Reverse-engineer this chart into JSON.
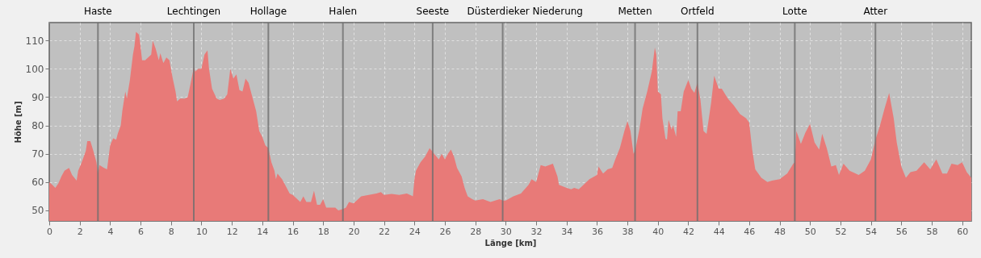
{
  "chart_data": {
    "type": "area",
    "xlabel": "Länge [km]",
    "ylabel": "Höhe [m]",
    "xlim": [
      0,
      60.6
    ],
    "ylim": [
      46.3,
      116.3
    ],
    "xticks": [
      0,
      2,
      4,
      6,
      8,
      10,
      12,
      14,
      16,
      18,
      20,
      22,
      24,
      26,
      28,
      30,
      32,
      34,
      36,
      38,
      40,
      42,
      44,
      46,
      48,
      50,
      52,
      54,
      56,
      58,
      60
    ],
    "yticks": [
      50,
      60,
      70,
      80,
      90,
      100,
      110
    ],
    "grid": true,
    "series": [
      {
        "color": "#e87a78",
        "x": [
          0,
          0.2,
          0.4,
          0.6,
          0.8,
          1.0,
          1.3,
          1.5,
          1.8,
          1.9,
          2.1,
          2.4,
          2.5,
          2.7,
          2.9,
          3.1,
          3.2,
          3.3,
          3.6,
          3.8,
          4.0,
          4.2,
          4.4,
          4.5,
          4.7,
          4.8,
          5.0,
          5.1,
          5.3,
          5.5,
          5.6,
          5.7,
          5.9,
          6.0,
          6.1,
          6.3,
          6.6,
          6.7,
          6.8,
          7.0,
          7.2,
          7.3,
          7.5,
          7.7,
          7.9,
          8.1,
          8.3,
          8.4,
          8.6,
          8.9,
          9.1,
          9.3,
          9.5,
          9.6,
          9.8,
          10.0,
          10.2,
          10.4,
          10.5,
          10.7,
          11.0,
          11.2,
          11.5,
          11.7,
          11.9,
          12.1,
          12.3,
          12.5,
          12.7,
          12.9,
          13.1,
          13.3,
          13.6,
          13.8,
          14.0,
          14.2,
          14.4,
          14.6,
          14.8,
          14.9,
          15.0,
          15.3,
          15.5,
          15.8,
          16.0,
          16.3,
          16.5,
          16.7,
          16.9,
          17.2,
          17.4,
          17.6,
          17.8,
          18.0,
          18.2,
          18.5,
          18.8,
          19.0,
          19.3,
          19.5,
          19.7,
          20.0,
          20.3,
          20.5,
          21.0,
          21.5,
          21.8,
          22.0,
          22.5,
          23.0,
          23.5,
          23.9,
          24.0,
          24.1,
          24.4,
          24.7,
          25.0,
          25.3,
          25.6,
          25.8,
          26.0,
          26.2,
          26.4,
          26.6,
          26.8,
          27.1,
          27.3,
          27.5,
          27.8,
          28.0,
          28.5,
          29.0,
          29.3,
          29.6,
          29.8,
          30.0,
          30.5,
          31.0,
          31.5,
          31.7,
          32.0,
          32.3,
          32.6,
          33.1,
          33.4,
          33.5,
          34.0,
          34.3,
          34.5,
          34.8,
          35.0,
          35.5,
          36.0,
          36.1,
          36.4,
          36.7,
          37.0,
          37.2,
          37.5,
          37.8,
          38.0,
          38.2,
          38.4,
          38.5,
          38.8,
          39.0,
          39.3,
          39.6,
          39.8,
          39.9,
          40.0,
          40.2,
          40.3,
          40.5,
          40.6,
          40.7,
          40.9,
          41.0,
          41.2,
          41.3,
          41.5,
          41.7,
          42.0,
          42.2,
          42.4,
          42.6,
          42.8,
          43.0,
          43.2,
          43.5,
          43.7,
          44.0,
          44.2,
          44.6,
          45.0,
          45.4,
          45.8,
          46.0,
          46.2,
          46.4,
          46.8,
          47.2,
          47.5,
          48.0,
          48.5,
          48.9,
          49.0,
          49.1,
          49.4,
          49.7,
          50.0,
          50.3,
          50.6,
          50.8,
          51.1,
          51.4,
          51.7,
          51.9,
          52.2,
          52.6,
          53.2,
          53.6,
          54.0,
          54.3,
          54.6,
          54.9,
          55.2,
          55.5,
          55.7,
          56.0,
          56.3,
          56.6,
          57.0,
          57.5,
          57.9,
          58.3,
          58.7,
          59.0,
          59.3,
          59.7,
          60.0,
          60.3,
          60.6
        ],
        "values": [
          60,
          59,
          58,
          59.5,
          62,
          64,
          65,
          62.5,
          60.5,
          64,
          66.5,
          71,
          74.5,
          74.5,
          71,
          67,
          63,
          66,
          65,
          64.5,
          73,
          75.5,
          75,
          77,
          80,
          85,
          92,
          89.5,
          96,
          105,
          108,
          113,
          112,
          108,
          103,
          103,
          104.5,
          105,
          110,
          107,
          103,
          105.5,
          102,
          104,
          103,
          97,
          92,
          88.5,
          89.5,
          89.5,
          90,
          95,
          100.5,
          99,
          100,
          100,
          105,
          106.5,
          100,
          93,
          89.5,
          89,
          89.5,
          91,
          100,
          96.5,
          98,
          92.5,
          92,
          96.5,
          95,
          91,
          85,
          78,
          76,
          73,
          72,
          67,
          64,
          61,
          63,
          61,
          59,
          56,
          55.5,
          54,
          53,
          55,
          53,
          53,
          57,
          52,
          52,
          54,
          51,
          51,
          51,
          50,
          50.5,
          51,
          53,
          52.5,
          54,
          55,
          55.5,
          56,
          56.5,
          55.5,
          55.8,
          55.5,
          56,
          55,
          61,
          64,
          67,
          69,
          72,
          70,
          68,
          70,
          68,
          70,
          71.5,
          69,
          65,
          62,
          58,
          55,
          54,
          53.5,
          54,
          53,
          53.5,
          54,
          53.5,
          53.5,
          55,
          56,
          59,
          61,
          60,
          66,
          65.5,
          66.5,
          62,
          59,
          58,
          57.5,
          58,
          57.5,
          58.5,
          61,
          62.5,
          65.5,
          63,
          64.5,
          65,
          68,
          72,
          78,
          81.5,
          78,
          70,
          71,
          79,
          86,
          92,
          99,
          107.5,
          105,
          92,
          91,
          82.5,
          75.3,
          75,
          82,
          78.5,
          80,
          76,
          85,
          85,
          92,
          96,
          93,
          91.5,
          95,
          89,
          78,
          77,
          88,
          97.5,
          93,
          93,
          89.5,
          87,
          84,
          82.5,
          81,
          71.5,
          64.5,
          61.5,
          60,
          60.5,
          61,
          63,
          66.5,
          67,
          78,
          73.5,
          77.5,
          80.5,
          74,
          71.5,
          77,
          72,
          65.5,
          66,
          62.5,
          66.5,
          64,
          62.5,
          64,
          68,
          75,
          80,
          86,
          91.5,
          82.5,
          74,
          65.5,
          61.5,
          63.5,
          64,
          67,
          64.5,
          68,
          63,
          63,
          66.5,
          66,
          67,
          63.5,
          61.5
        ]
      }
    ],
    "ref_lines": [
      {
        "axis": "x",
        "value": 3.2,
        "label": "Haste",
        "color": "#6e6e6e"
      },
      {
        "axis": "x",
        "value": 9.5,
        "label": "Lechtingen",
        "color": "#6e6e6e"
      },
      {
        "axis": "x",
        "value": 14.4,
        "label": "Hollage",
        "color": "#6e6e6e"
      },
      {
        "axis": "x",
        "value": 19.3,
        "label": "Halen",
        "color": "#6e6e6e"
      },
      {
        "axis": "x",
        "value": 25.2,
        "label": "Seeste",
        "color": "#6e6e6e"
      },
      {
        "axis": "x",
        "value": 29.8,
        "label": "Düsterdieker Niederung",
        "color": "#6e6e6e"
      },
      {
        "axis": "x",
        "value": 38.5,
        "label": "Metten",
        "color": "#6e6e6e"
      },
      {
        "axis": "x",
        "value": 42.6,
        "label": "Ortfeld",
        "color": "#6e6e6e"
      },
      {
        "axis": "x",
        "value": 49.0,
        "label": "Lotte",
        "color": "#6e6e6e"
      },
      {
        "axis": "x",
        "value": 54.3,
        "label": "Atter",
        "color": "#6e6e6e"
      }
    ]
  }
}
